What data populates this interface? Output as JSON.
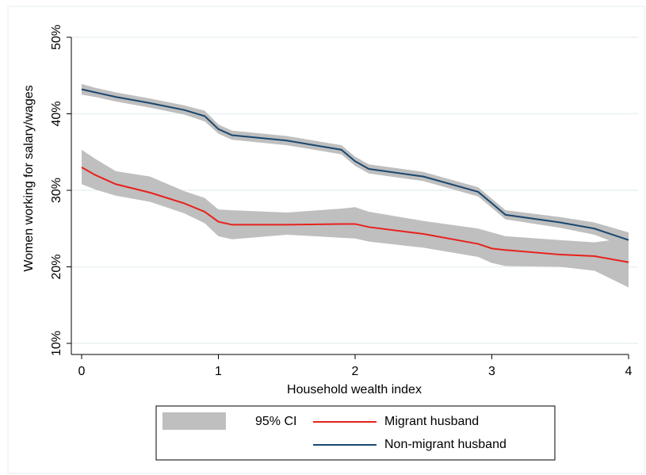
{
  "chart_data": {
    "type": "line",
    "x_label": "Household wealth index",
    "y_label": "Women working for salary/wages",
    "x": [
      0,
      0.1,
      0.25,
      0.5,
      0.75,
      0.9,
      1,
      1.1,
      1.5,
      1.9,
      2,
      2.1,
      2.5,
      2.9,
      3,
      3.1,
      3.5,
      3.75,
      4
    ],
    "ci_label": "95% CI",
    "ci_color": "#bfbfbf",
    "series": [
      {
        "name": "Migrant husband",
        "color": "#e8211c",
        "values": [
          33.0,
          32.0,
          30.8,
          29.7,
          28.3,
          27.2,
          25.9,
          25.5,
          25.5,
          25.6,
          25.6,
          25.2,
          24.3,
          23.0,
          22.4,
          22.2,
          21.6,
          21.4,
          20.6
        ],
        "ci_lower": [
          30.8,
          30.1,
          29.3,
          28.5,
          27.0,
          25.7,
          24.0,
          23.6,
          24.2,
          23.8,
          23.7,
          23.3,
          22.5,
          21.3,
          20.5,
          20.1,
          20.0,
          19.5,
          17.3
        ],
        "ci_upper": [
          35.3,
          34.1,
          32.5,
          31.8,
          29.9,
          29.0,
          27.5,
          27.4,
          27.1,
          27.6,
          27.8,
          27.2,
          26.0,
          25.0,
          24.5,
          24.0,
          23.5,
          23.2,
          23.8
        ]
      },
      {
        "name": "Non-migrant husband",
        "color": "#1a476f",
        "values": [
          43.2,
          42.8,
          42.2,
          41.4,
          40.5,
          39.7,
          38.0,
          37.2,
          36.5,
          35.3,
          33.8,
          32.8,
          31.8,
          29.8,
          28.3,
          26.8,
          25.8,
          25.0,
          23.5
        ],
        "ci_lower": [
          42.5,
          42.2,
          41.6,
          40.8,
          39.9,
          39.0,
          37.4,
          36.6,
          35.9,
          34.7,
          33.2,
          32.2,
          31.2,
          29.2,
          27.7,
          26.2,
          25.1,
          24.2,
          22.5
        ],
        "ci_upper": [
          43.9,
          43.4,
          42.8,
          42.0,
          41.1,
          40.4,
          38.6,
          37.8,
          37.1,
          35.9,
          34.4,
          33.4,
          32.4,
          30.4,
          28.9,
          27.4,
          26.5,
          25.8,
          24.5
        ]
      }
    ],
    "xlim": [
      0,
      4
    ],
    "xticks": [
      0,
      1,
      2,
      3,
      4
    ],
    "ylim": [
      10,
      50
    ],
    "yticks": [
      {
        "value": 10,
        "label": "10%"
      },
      {
        "value": 20,
        "label": "20%"
      },
      {
        "value": 30,
        "label": "30%"
      },
      {
        "value": 40,
        "label": "40%"
      },
      {
        "value": 50,
        "label": "50%"
      }
    ],
    "grid": true
  }
}
